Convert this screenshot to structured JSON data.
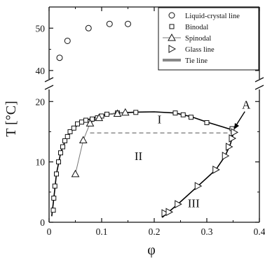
{
  "chart_data": {
    "type": "scatter",
    "xlabel": "φ",
    "ylabel": "T [°C]",
    "xlim": [
      0,
      0.4
    ],
    "axis_break": {
      "lower_ylim": [
        0,
        22
      ],
      "upper_ylim": [
        38,
        55
      ]
    },
    "x_ticks": [
      "0",
      "0.1",
      "0.2",
      "0.3",
      "0.4"
    ],
    "y_ticks_lower": [
      "0",
      "10",
      "20"
    ],
    "y_ticks_upper": [
      "40",
      "50"
    ],
    "legend_position": "top-right",
    "series": [
      {
        "name": "Liquid-crystal line",
        "marker": "circle",
        "points": [
          [
            0.02,
            43.0
          ],
          [
            0.035,
            47.0
          ],
          [
            0.075,
            50.0
          ],
          [
            0.115,
            51.0
          ],
          [
            0.15,
            51.0
          ]
        ]
      },
      {
        "name": "Binodal",
        "marker": "square",
        "points": [
          [
            0.008,
            2.0
          ],
          [
            0.009,
            4.0
          ],
          [
            0.011,
            6.0
          ],
          [
            0.014,
            8.0
          ],
          [
            0.018,
            10.0
          ],
          [
            0.022,
            11.5
          ],
          [
            0.026,
            12.5
          ],
          [
            0.03,
            13.5
          ],
          [
            0.035,
            14.2
          ],
          [
            0.04,
            15.0
          ],
          [
            0.047,
            15.6
          ],
          [
            0.054,
            16.3
          ],
          [
            0.062,
            16.6
          ],
          [
            0.07,
            16.9
          ],
          [
            0.082,
            17.1
          ],
          [
            0.092,
            17.3
          ],
          [
            0.1,
            17.6
          ],
          [
            0.11,
            17.9
          ],
          [
            0.13,
            18.1
          ],
          [
            0.165,
            18.2
          ],
          [
            0.24,
            18.1
          ],
          [
            0.255,
            17.8
          ],
          [
            0.27,
            17.4
          ],
          [
            0.3,
            16.5
          ],
          [
            0.348,
            15.5
          ]
        ]
      },
      {
        "name": "Spinodal",
        "marker": "triangle-up",
        "points": [
          [
            0.05,
            8.0
          ],
          [
            0.065,
            13.6
          ],
          [
            0.078,
            16.4
          ],
          [
            0.095,
            17.3
          ],
          [
            0.13,
            18.0
          ],
          [
            0.145,
            18.2
          ]
        ]
      },
      {
        "name": "Glass line",
        "marker": "triangle-right",
        "points": [
          [
            0.22,
            1.5
          ],
          [
            0.228,
            1.7
          ],
          [
            0.245,
            3.0
          ],
          [
            0.283,
            6.0
          ],
          [
            0.317,
            8.7
          ],
          [
            0.335,
            11.0
          ],
          [
            0.342,
            12.5
          ],
          [
            0.348,
            13.9
          ],
          [
            0.352,
            14.9
          ]
        ]
      },
      {
        "name": "Tie line",
        "marker": "dashed-line",
        "points": [
          [
            0.078,
            14.8
          ],
          [
            0.352,
            14.8
          ]
        ]
      }
    ],
    "curves": {
      "binodal_fit": [
        [
          0.005,
          1.0
        ],
        [
          0.009,
          4.0
        ],
        [
          0.014,
          8.0
        ],
        [
          0.022,
          11.5
        ],
        [
          0.032,
          13.8
        ],
        [
          0.045,
          15.4
        ],
        [
          0.06,
          16.5
        ],
        [
          0.08,
          17.2
        ],
        [
          0.1,
          17.7
        ],
        [
          0.13,
          18.1
        ],
        [
          0.165,
          18.25
        ],
        [
          0.2,
          18.3
        ],
        [
          0.24,
          18.1
        ],
        [
          0.27,
          17.5
        ],
        [
          0.3,
          16.6
        ],
        [
          0.33,
          15.8
        ],
        [
          0.352,
          15.2
        ]
      ],
      "spinodal_line": [
        [
          0.05,
          8.0
        ],
        [
          0.065,
          13.6
        ],
        [
          0.078,
          16.4
        ],
        [
          0.095,
          17.3
        ],
        [
          0.12,
          18.0
        ],
        [
          0.145,
          18.2
        ]
      ],
      "glass_fit": [
        [
          0.215,
          0.8
        ],
        [
          0.245,
          3.0
        ],
        [
          0.283,
          6.0
        ],
        [
          0.317,
          8.7
        ],
        [
          0.335,
          11.0
        ],
        [
          0.345,
          13.0
        ],
        [
          0.352,
          15.2
        ]
      ]
    },
    "annotations": [
      {
        "text": "I",
        "x": 0.21,
        "y": 16.4
      },
      {
        "text": "II",
        "x": 0.17,
        "y": 10.3
      },
      {
        "text": "III",
        "x": 0.275,
        "y": 2.5
      },
      {
        "text": "A",
        "x": 0.375,
        "y": 18.8
      }
    ]
  }
}
